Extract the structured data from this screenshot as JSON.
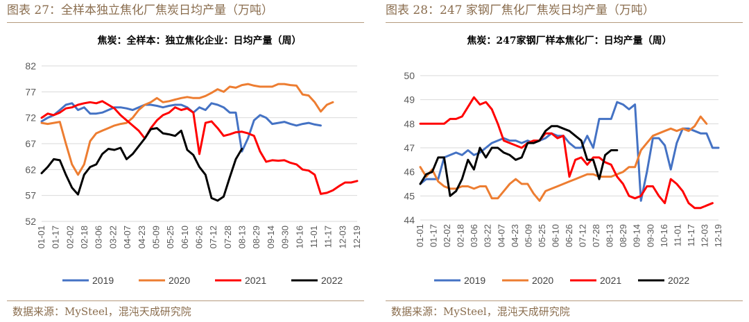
{
  "panels": [
    {
      "header": "图表 27：全样本独立焦化厂焦炭日均产量（万吨）",
      "source": "数据来源：MySteel，混沌天成研究院",
      "chart_data": {
        "type": "line",
        "title": "焦炭：全样本：独立焦化企业：日均产量（周）",
        "xlabel": "",
        "ylabel": "",
        "ylim": [
          52,
          82
        ],
        "yticks": [
          52,
          57,
          62,
          67,
          72,
          77,
          82
        ],
        "x_tick_labels": [
          "01-01",
          "01-17",
          "02-02",
          "02-18",
          "03-06",
          "03-22",
          "04-07",
          "04-23",
          "05-09",
          "05-25",
          "06-10",
          "06-26",
          "07-12",
          "07-28",
          "08-13",
          "08-29",
          "09-14",
          "09-30",
          "10-16",
          "11-01",
          "11-17",
          "12-03",
          "12-19"
        ],
        "grid": true,
        "legend_position": "bottom",
        "series": [
          {
            "name": "2019",
            "color": "#4472c4",
            "values": [
              71.3,
              72.0,
              72.5,
              73.5,
              74.5,
              74.8,
              73.5,
              74.0,
              72.8,
              72.8,
              73.0,
              73.5,
              74.0,
              74.0,
              73.8,
              73.5,
              74.0,
              74.5,
              74.5,
              74.3,
              74.0,
              74.3,
              74.5,
              74.5,
              74.0,
              73.0,
              74.0,
              73.5,
              74.8,
              74.5,
              74.0,
              73.0,
              73.0,
              65.5,
              68.0,
              71.5,
              72.5,
              72.0,
              70.8,
              71.0,
              71.2,
              70.8,
              70.5,
              70.8,
              71.0,
              70.7,
              70.5
            ]
          },
          {
            "name": "2020",
            "color": "#ed7d31",
            "values": [
              71.0,
              70.8,
              71.0,
              71.2,
              67.0,
              63.0,
              61.0,
              63.0,
              67.5,
              69.0,
              69.5,
              70.0,
              70.5,
              70.8,
              71.0,
              72.0,
              73.5,
              74.5,
              75.0,
              75.8,
              75.0,
              75.2,
              75.5,
              75.8,
              76.0,
              75.8,
              75.8,
              76.2,
              76.8,
              77.5,
              77.0,
              78.0,
              77.8,
              78.3,
              78.5,
              78.2,
              78.0,
              78.0,
              78.0,
              78.5,
              78.5,
              78.3,
              78.2,
              76.5,
              76.3,
              75.0,
              73.2,
              74.5,
              75.0
            ]
          },
          {
            "name": "2021",
            "color": "#ff0000",
            "values": [
              72.0,
              72.8,
              72.5,
              73.0,
              73.8,
              74.0,
              74.5,
              74.8,
              75.0,
              74.8,
              75.2,
              74.5,
              73.8,
              72.5,
              71.5,
              70.5,
              69.5,
              68.0,
              70.0,
              71.5,
              72.5,
              73.0,
              74.0,
              73.5,
              73.8,
              73.0,
              65.0,
              71.0,
              71.3,
              70.0,
              68.5,
              68.8,
              69.2,
              69.3,
              69.0,
              68.5,
              65.5,
              63.5,
              63.8,
              63.7,
              63.8,
              63.3,
              63.0,
              62.0,
              61.8,
              61.0,
              57.3,
              57.5,
              58.0,
              58.8,
              59.5,
              59.5,
              59.8
            ]
          },
          {
            "name": "2022",
            "color": "#000000",
            "values": [
              61.3,
              62.5,
              64.0,
              63.8,
              61.0,
              58.5,
              57.2,
              61.0,
              62.5,
              63.0,
              65.0,
              66.0,
              65.8,
              66.2,
              64.0,
              65.0,
              66.5,
              68.0,
              69.8,
              70.0,
              69.0,
              68.8,
              68.5,
              69.5,
              65.8,
              64.8,
              62.5,
              61.0,
              56.5,
              56.0,
              56.8,
              60.5,
              64.0,
              66.0
            ]
          }
        ]
      }
    },
    {
      "header": "图表 28：247 家钢厂焦化厂焦炭日均产量（万吨）",
      "source": "数据来源：MySteel，混沌天成研究院",
      "chart_data": {
        "type": "line",
        "title": "焦炭：247家钢厂样本焦化厂：日均产量（周）",
        "xlabel": "",
        "ylabel": "",
        "ylim": [
          44,
          50
        ],
        "yticks": [
          44,
          45,
          46,
          47,
          48,
          49,
          50
        ],
        "x_tick_labels": [
          "01-01",
          "01-17",
          "02-02",
          "02-18",
          "03-06",
          "03-22",
          "04-07",
          "04-23",
          "05-09",
          "05-25",
          "06-10",
          "06-26",
          "07-12",
          "07-28",
          "08-13",
          "08-29",
          "09-14",
          "09-30",
          "10-16",
          "11-01",
          "11-17",
          "12-03",
          "12-19"
        ],
        "grid": true,
        "legend_position": "bottom",
        "series": [
          {
            "name": "2019",
            "color": "#4472c4",
            "values": [
              45.5,
              45.7,
              45.7,
              45.7,
              46.6,
              46.7,
              46.8,
              46.7,
              46.9,
              46.7,
              46.8,
              47.0,
              47.2,
              47.3,
              47.4,
              47.3,
              47.3,
              47.2,
              47.3,
              47.2,
              47.3,
              47.4,
              47.6,
              47.5,
              47.5,
              47.2,
              47.0,
              47.0,
              47.5,
              47.0,
              48.2,
              48.2,
              48.2,
              48.9,
              48.8,
              48.6,
              48.8,
              44.8,
              46.0,
              47.4,
              47.4,
              47.1,
              46.1,
              47.2,
              47.8,
              47.8,
              47.7,
              47.6,
              47.6,
              47.0,
              47.0
            ]
          },
          {
            "name": "2020",
            "color": "#ed7d31",
            "values": [
              46.2,
              45.8,
              46.1,
              45.6,
              45.4,
              45.3,
              45.3,
              45.4,
              45.4,
              45.3,
              45.4,
              45.4,
              44.9,
              44.9,
              45.2,
              45.5,
              45.7,
              45.5,
              45.5,
              45.1,
              44.8,
              45.2,
              45.3,
              45.4,
              45.5,
              45.6,
              45.7,
              45.8,
              45.9,
              45.9,
              45.8,
              45.8,
              45.8,
              45.9,
              46.0,
              46.2,
              46.2,
              46.9,
              47.2,
              47.5,
              47.6,
              47.7,
              47.8,
              47.7,
              47.8,
              47.7,
              47.9,
              48.3,
              48.0
            ]
          },
          {
            "name": "2021",
            "color": "#ff0000",
            "values": [
              48.0,
              48.0,
              48.0,
              48.0,
              48.0,
              48.2,
              48.2,
              48.3,
              48.7,
              49.1,
              48.8,
              48.9,
              48.6,
              48.0,
              47.3,
              47.2,
              47.1,
              47.0,
              47.2,
              47.3,
              47.3,
              47.6,
              47.6,
              47.4,
              47.5,
              45.8,
              46.5,
              46.6,
              46.3,
              46.6,
              46.6,
              46.4,
              46.3,
              45.8,
              45.5,
              45.0,
              44.9,
              45.0,
              45.4,
              45.4,
              45.0,
              44.7,
              45.7,
              45.5,
              45.2,
              44.7,
              44.5,
              44.5,
              44.6,
              44.7
            ]
          },
          {
            "name": "2022",
            "color": "#000000",
            "values": [
              45.5,
              45.9,
              46.0,
              46.6,
              46.6,
              45.0,
              45.2,
              45.7,
              46.5,
              46.1,
              47.0,
              46.6,
              47.0,
              47.0,
              46.8,
              46.7,
              46.5,
              46.6,
              47.2,
              47.2,
              47.3,
              47.7,
              47.9,
              47.9,
              47.8,
              47.7,
              47.5,
              47.3,
              46.5,
              46.5,
              45.7,
              46.7,
              46.9,
              46.9
            ]
          }
        ]
      }
    }
  ]
}
